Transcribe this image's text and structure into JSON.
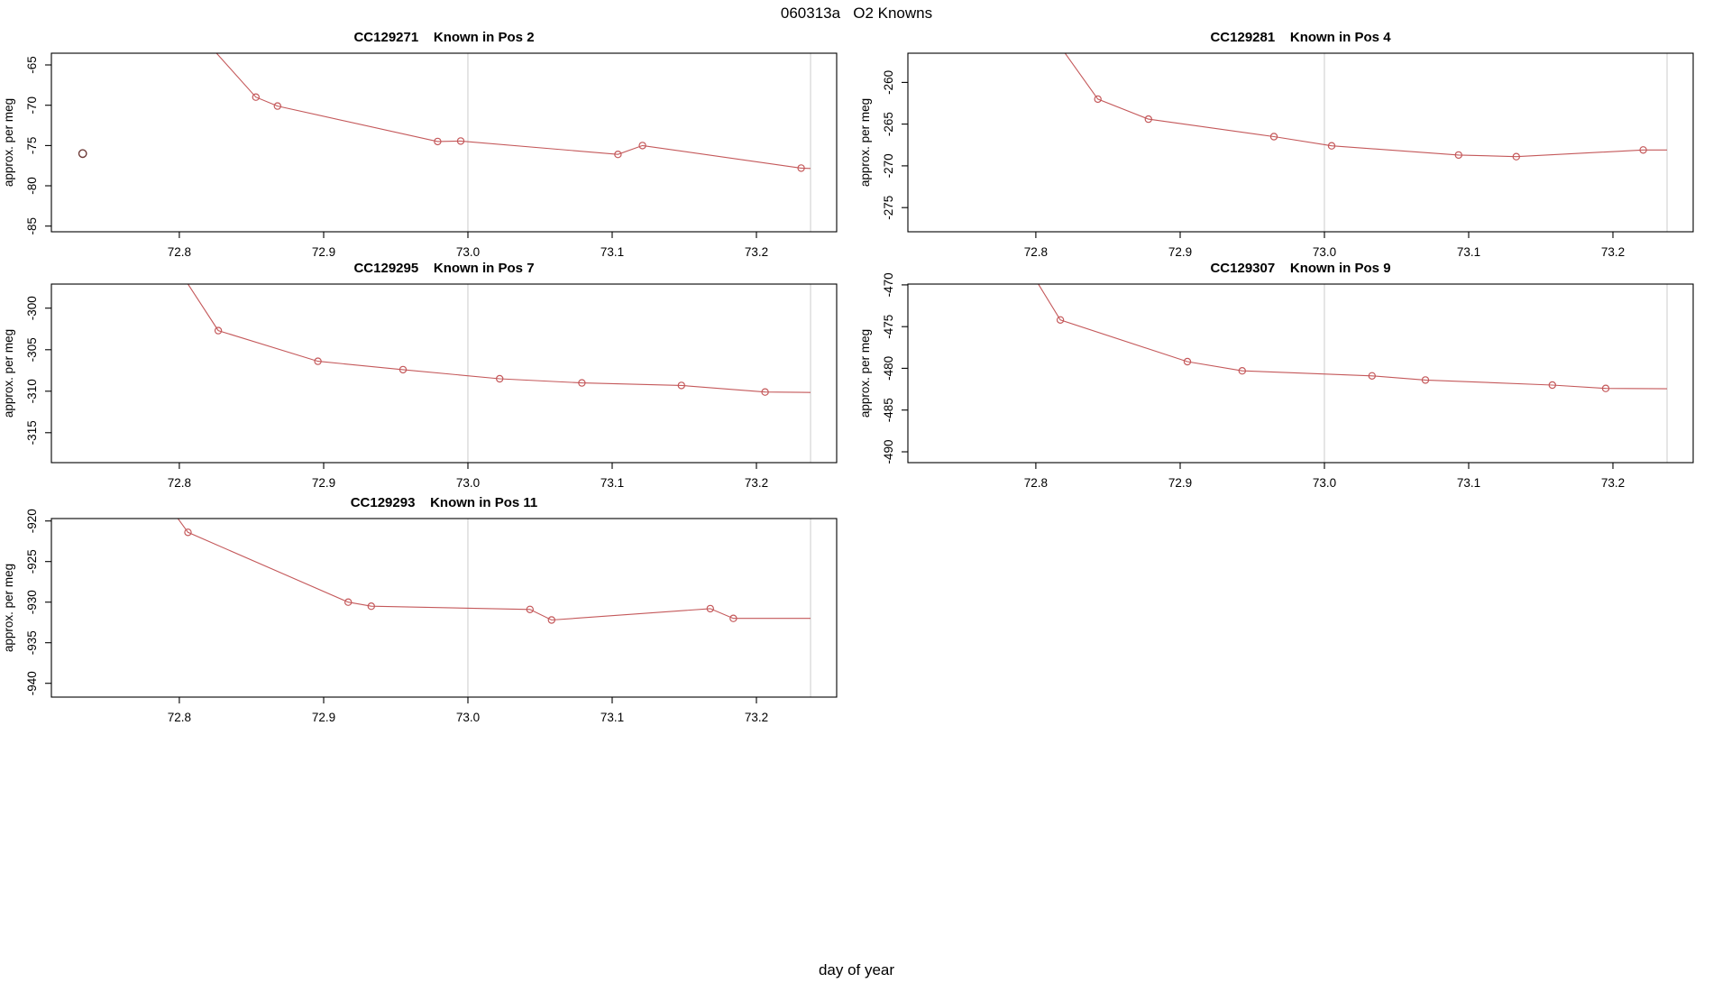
{
  "figure": {
    "title": "060313a   O2 Knowns",
    "outer_xlabel": "day of year"
  },
  "style": {
    "series_color": "#C4585A",
    "outlier_color": "#6E3B38",
    "grid_color": "#D4D4D4",
    "axis_color": "#000000",
    "text_color": "#000000",
    "background": "#FFFFFF"
  },
  "x_axis": {
    "xlim": [
      72.7113,
      73.2556
    ],
    "ticks": [
      72.8,
      72.9,
      73.0,
      73.1,
      73.2
    ],
    "tick_labels": [
      "72.8",
      "72.9",
      "73.0",
      "73.1",
      "73.2"
    ],
    "vlines": [
      73.0,
      73.2375
    ]
  },
  "chart_data": [
    {
      "type": "line",
      "title": "CC129271    Known in Pos 2",
      "ylabel": "approx. per meg",
      "ylim": [
        -85.7,
        -63.55
      ],
      "y_ticks": [
        -85,
        -80,
        -75,
        -70,
        -65
      ],
      "y_tick_labels": [
        "-85",
        "-80",
        "-75",
        "-70",
        "-65"
      ],
      "line_x": [
        72.818,
        72.853,
        72.868,
        72.979,
        72.995,
        73.104,
        73.121,
        73.231,
        73.2375
      ],
      "line_y": [
        -62.0,
        -69.0,
        -70.1,
        -74.5,
        -74.45,
        -76.1,
        -75.0,
        -77.8,
        -77.85
      ],
      "outliers": [
        {
          "x": 72.733,
          "y": -76.0
        }
      ]
    },
    {
      "type": "line",
      "title": "CC129281    Known in Pos 4",
      "ylabel": "approx. per meg",
      "ylim": [
        -277.9,
        -256.5
      ],
      "y_ticks": [
        -275,
        -270,
        -265,
        -260
      ],
      "y_tick_labels": [
        "-275",
        "-270",
        "-265",
        "-260"
      ],
      "line_x": [
        72.812,
        72.843,
        72.878,
        72.965,
        73.005,
        73.093,
        73.133,
        73.221,
        73.2375
      ],
      "line_y": [
        -254.5,
        -262.0,
        -264.4,
        -266.5,
        -267.6,
        -268.7,
        -268.9,
        -268.1,
        -268.1
      ],
      "outliers": []
    },
    {
      "type": "line",
      "title": "CC129295    Known in Pos 7",
      "ylabel": "approx. per meg",
      "ylim": [
        -318.6,
        -297.1
      ],
      "y_ticks": [
        -315,
        -310,
        -305,
        -300
      ],
      "y_tick_labels": [
        "-315",
        "-310",
        "-305",
        "-300"
      ],
      "line_x": [
        72.8,
        72.827,
        72.896,
        72.955,
        73.022,
        73.079,
        73.148,
        73.206,
        73.2375
      ],
      "line_y": [
        -295.5,
        -302.7,
        -306.4,
        -307.4,
        -308.5,
        -309.0,
        -309.3,
        -310.1,
        -310.15
      ],
      "outliers": []
    },
    {
      "type": "line",
      "title": "CC129307    Known in Pos 9",
      "ylabel": "approx. per meg",
      "ylim": [
        -491.3,
        -469.9
      ],
      "y_ticks": [
        -490,
        -485,
        -480,
        -475,
        -470
      ],
      "y_tick_labels": [
        "-490",
        "-485",
        "-480",
        "-475",
        "-470"
      ],
      "line_x": [
        72.795,
        72.817,
        72.905,
        72.943,
        73.033,
        73.07,
        73.158,
        73.195,
        73.2375
      ],
      "line_y": [
        -468.0,
        -474.2,
        -479.2,
        -480.3,
        -480.9,
        -481.4,
        -482.0,
        -482.4,
        -482.45
      ],
      "outliers": []
    },
    {
      "type": "line",
      "title": "CC129293    Known in Pos 11",
      "ylabel": "approx. per meg",
      "ylim": [
        -941.7,
        -919.7
      ],
      "y_ticks": [
        -940,
        -935,
        -930,
        -925,
        -920
      ],
      "y_tick_labels": [
        "-940",
        "-935",
        "-930",
        "-925",
        "-920"
      ],
      "line_x": [
        72.79,
        72.806,
        72.917,
        72.933,
        73.043,
        73.058,
        73.168,
        73.184,
        73.2375
      ],
      "line_y": [
        -917.5,
        -921.4,
        -930.0,
        -930.5,
        -930.9,
        -932.2,
        -930.8,
        -932.0,
        -932.0
      ],
      "outliers": []
    }
  ]
}
